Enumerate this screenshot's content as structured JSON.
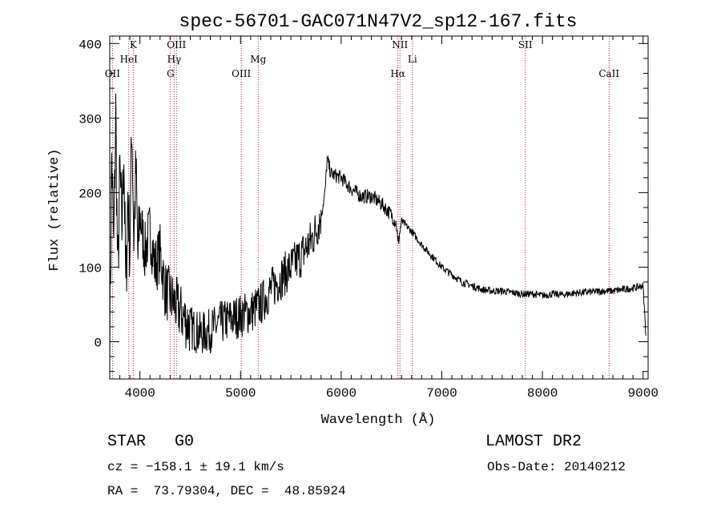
{
  "chart_data": {
    "type": "line",
    "title": "spec-56701-GAC071N47V2_sp12-167.fits",
    "xlabel": "Wavelength (Å)",
    "ylabel": "Flux (relative)",
    "xlim": [
      3700,
      9050
    ],
    "ylim": [
      -50,
      410
    ],
    "x_ticks": [
      4000,
      5000,
      6000,
      7000,
      8000,
      9000
    ],
    "y_ticks": [
      0,
      100,
      200,
      300,
      400
    ],
    "grid": false,
    "legend": "none",
    "line_color": "#000000",
    "marker_color": "#b22222",
    "lines": [
      {
        "label": "OII",
        "wavelength": 3727,
        "row": 3
      },
      {
        "label": "K",
        "wavelength": 3934,
        "row": 1
      },
      {
        "label": "HeI",
        "wavelength": 3889,
        "row": 2
      },
      {
        "label": "OIII",
        "wavelength": 4363,
        "row": 1
      },
      {
        "label": "Hγ",
        "wavelength": 4340,
        "row": 2
      },
      {
        "label": "G",
        "wavelength": 4304,
        "row": 3
      },
      {
        "label": "Mg",
        "wavelength": 5175,
        "row": 2
      },
      {
        "label": "OIII",
        "wavelength": 5007,
        "row": 3
      },
      {
        "label": "NII",
        "wavelength": 6584,
        "row": 1
      },
      {
        "label": "Li",
        "wavelength": 6708,
        "row": 2
      },
      {
        "label": "Hα",
        "wavelength": 6563,
        "row": 3
      },
      {
        "label": "SII",
        "wavelength": 7830,
        "row": 1
      },
      {
        "label": "CaII",
        "wavelength": 8662,
        "row": 3
      }
    ],
    "series": [
      {
        "x": [
          3700,
          3720,
          3740,
          3760,
          3780,
          3800,
          3820,
          3840,
          3860,
          3880,
          3900,
          3920,
          3940,
          3960,
          3980,
          4000,
          4050,
          4100,
          4150,
          4200,
          4250,
          4300,
          4350,
          4400,
          4450,
          4500,
          4600,
          4700,
          4800,
          4900,
          5000,
          5100,
          5200,
          5300,
          5400,
          5500,
          5600,
          5700,
          5750,
          5800,
          5840,
          5860,
          5900,
          6000,
          6100,
          6200,
          6300,
          6400,
          6500,
          6550,
          6563,
          6600,
          6700,
          6800,
          6900,
          7000,
          7100,
          7200,
          7300,
          7400,
          7500,
          7600,
          7700,
          7800,
          7900,
          8000,
          8100,
          8200,
          8300,
          8400,
          8500,
          8600,
          8700,
          8800,
          8900,
          9000,
          9030
        ],
        "y": [
          0,
          250,
          120,
          310,
          80,
          230,
          150,
          260,
          60,
          200,
          120,
          300,
          140,
          230,
          110,
          170,
          120,
          150,
          100,
          120,
          70,
          60,
          50,
          40,
          30,
          20,
          10,
          15,
          25,
          30,
          35,
          40,
          50,
          70,
          85,
          100,
          115,
          135,
          150,
          170,
          200,
          245,
          225,
          220,
          205,
          195,
          195,
          185,
          170,
          158,
          130,
          162,
          148,
          130,
          115,
          100,
          90,
          80,
          75,
          70,
          68,
          68,
          66,
          64,
          64,
          62,
          64,
          63,
          65,
          66,
          67,
          68,
          68,
          70,
          72,
          75,
          5
        ]
      }
    ]
  },
  "info": {
    "class": "STAR",
    "subclass": "G0",
    "survey": "LAMOST DR2",
    "cz": "cz = −158.1 ± 19.1 km/s",
    "obs_date": "Obs-Date: 20140212",
    "radec": "RA =  73.79304, DEC =  48.85924"
  }
}
